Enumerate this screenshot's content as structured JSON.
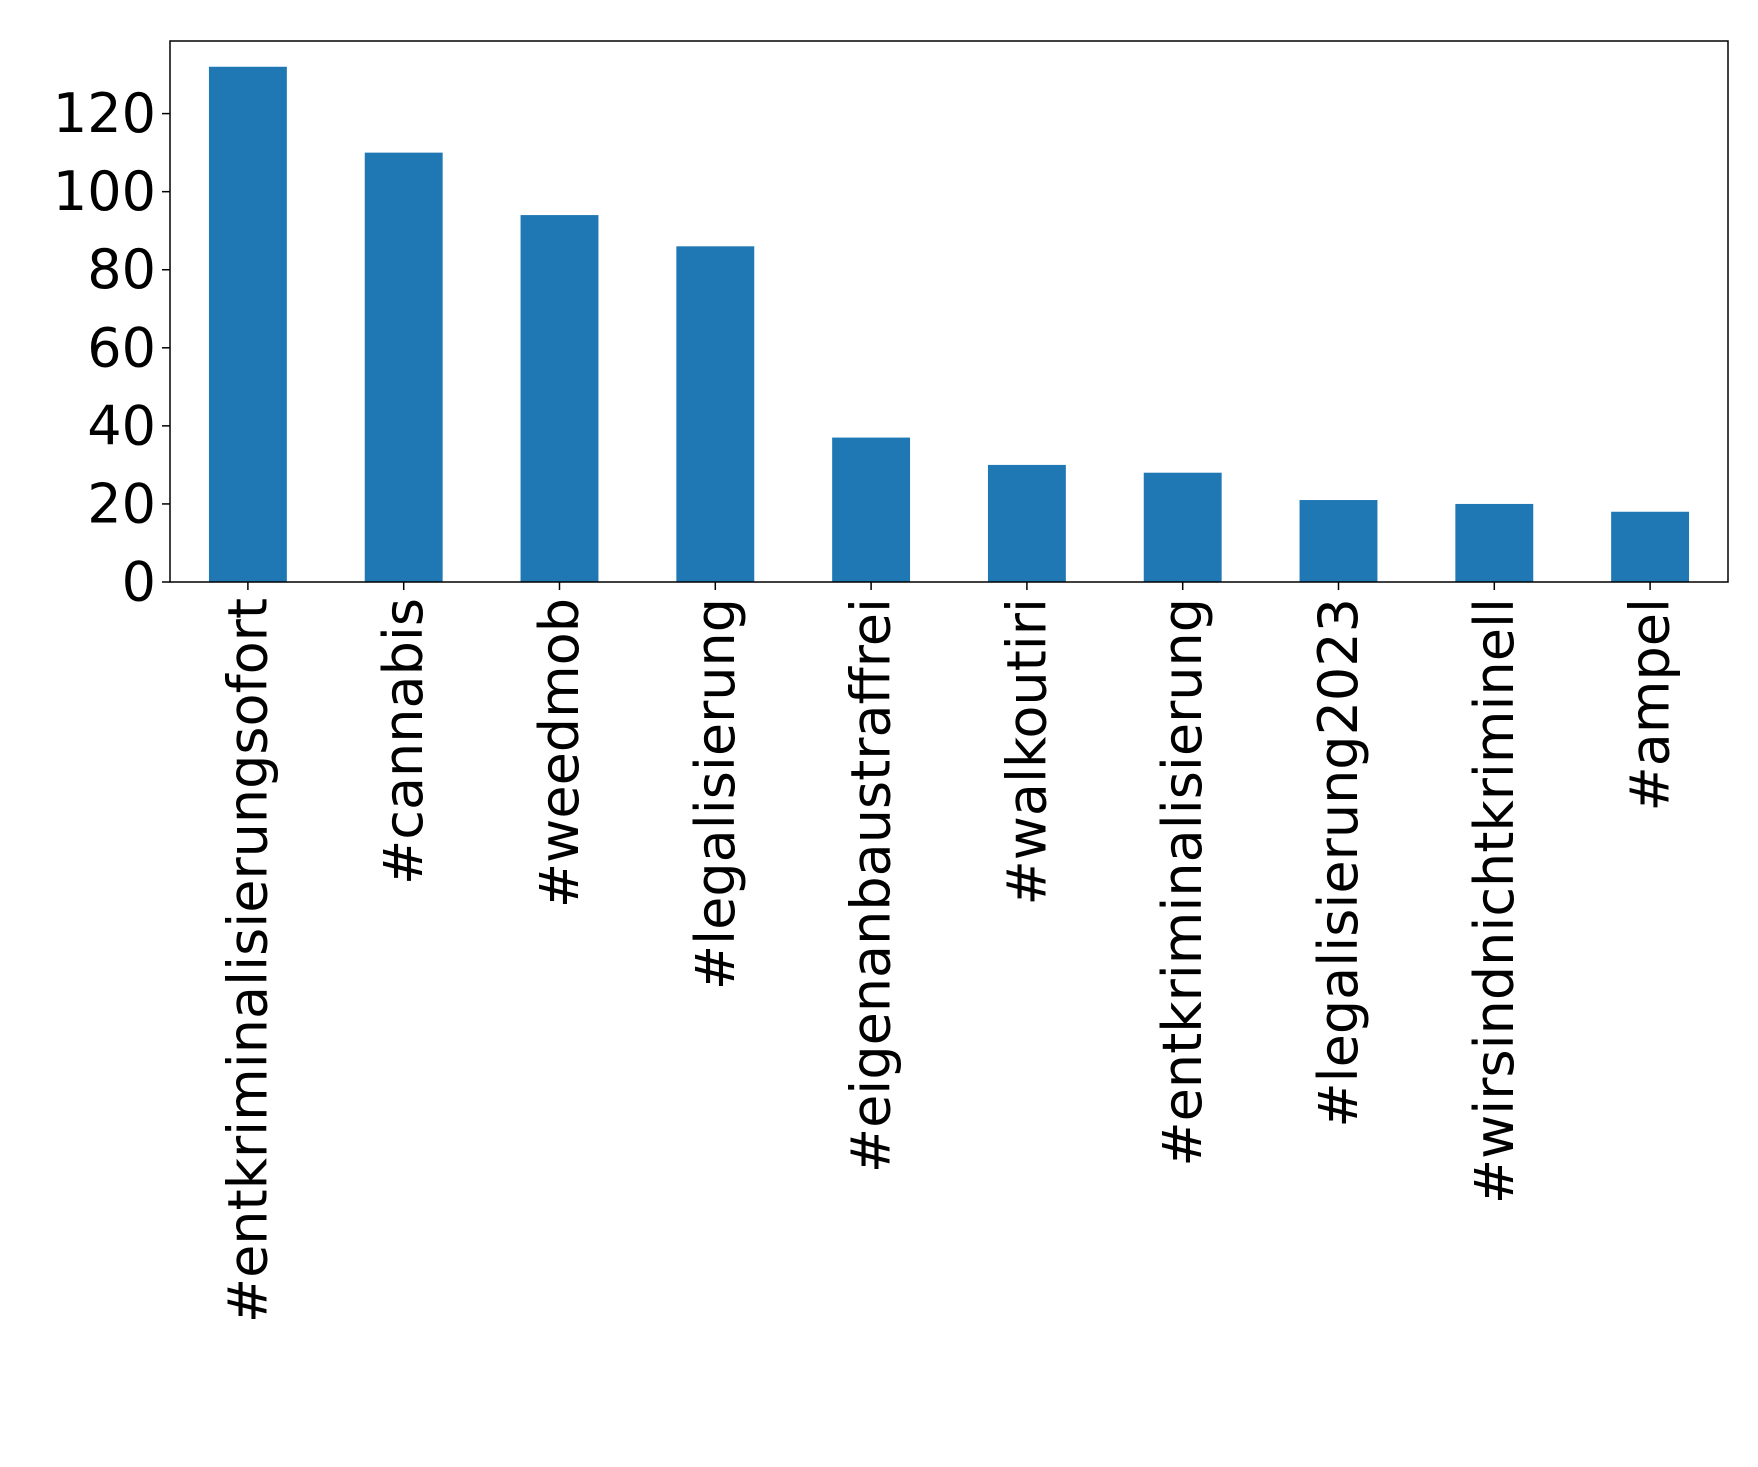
{
  "chart_data": {
    "type": "bar",
    "categories": [
      "#entkriminalisierungsofort",
      "#cannabis",
      "#weedmob",
      "#legalisierung",
      "#eigenanbaustraffrei",
      "#walkoutiri",
      "#entkriminalisierung",
      "#legalisierung2023",
      "#wirsindnichtkriminell",
      "#ampel"
    ],
    "values": [
      132,
      110,
      94,
      86,
      37,
      30,
      28,
      21,
      20,
      18
    ],
    "ylim": [
      0,
      138.6
    ],
    "yticks": [
      0,
      20,
      40,
      60,
      80,
      100,
      120
    ],
    "bar_color": "#1f77b4",
    "grid": false,
    "legend": false
  }
}
